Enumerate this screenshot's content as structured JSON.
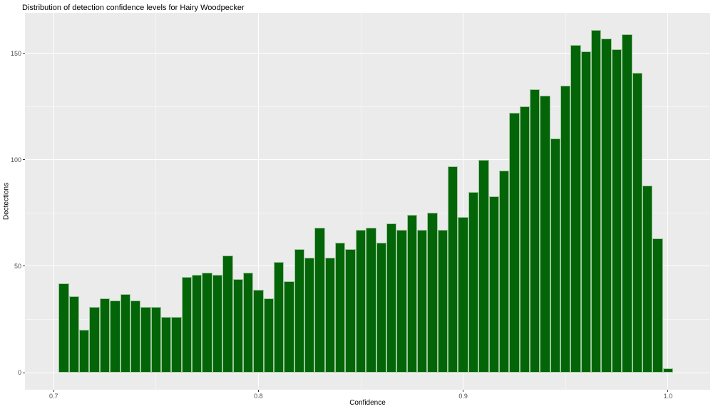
{
  "chart_data": {
    "type": "bar",
    "subtype": "histogram",
    "title": "Distribution of detection confidence levels for Hairy Woodpecker",
    "xlabel": "Confidence",
    "ylabel": "Dectections",
    "grid": true,
    "legend_position": "none",
    "bin_width": 0.005,
    "bin_centers": [
      0.705,
      0.71,
      0.715,
      0.72,
      0.725,
      0.73,
      0.735,
      0.74,
      0.745,
      0.75,
      0.755,
      0.76,
      0.765,
      0.77,
      0.775,
      0.78,
      0.785,
      0.79,
      0.795,
      0.8,
      0.805,
      0.81,
      0.815,
      0.82,
      0.825,
      0.83,
      0.835,
      0.84,
      0.845,
      0.85,
      0.855,
      0.86,
      0.865,
      0.87,
      0.875,
      0.88,
      0.885,
      0.89,
      0.895,
      0.9,
      0.905,
      0.91,
      0.915,
      0.92,
      0.925,
      0.93,
      0.935,
      0.94,
      0.945,
      0.95,
      0.955,
      0.96,
      0.965,
      0.97,
      0.975,
      0.98,
      0.985,
      0.99,
      0.995,
      1.0
    ],
    "values": [
      42,
      36,
      20,
      31,
      35,
      34,
      37,
      34,
      31,
      31,
      26,
      26,
      45,
      46,
      47,
      46,
      55,
      44,
      47,
      39,
      35,
      52,
      43,
      58,
      54,
      68,
      54,
      61,
      58,
      67,
      68,
      61,
      70,
      67,
      74,
      67,
      75,
      67,
      97,
      73,
      85,
      100,
      83,
      95,
      122,
      125,
      133,
      130,
      110,
      135,
      154,
      151,
      161,
      157,
      152,
      159,
      141,
      88,
      63,
      2
    ],
    "x_ticks": [
      {
        "v": 0.7,
        "label": "0.7"
      },
      {
        "v": 0.8,
        "label": "0.8"
      },
      {
        "v": 0.9,
        "label": "0.9"
      },
      {
        "v": 1.0,
        "label": "1.0"
      }
    ],
    "y_ticks": [
      {
        "v": 0,
        "label": "0"
      },
      {
        "v": 50,
        "label": "50"
      },
      {
        "v": 100,
        "label": "100"
      },
      {
        "v": 150,
        "label": "150"
      }
    ],
    "x_minor": [
      0.75,
      0.85,
      0.95
    ],
    "y_minor": [
      25,
      75,
      125
    ],
    "xlim": [
      0.686,
      1.0206
    ],
    "ylim": [
      -8.05,
      169.05
    ],
    "colors": {
      "bar_fill": "#046408",
      "bar_border": "#9cc79c",
      "panel_bg": "#ebebeb",
      "grid_major": "#ffffff",
      "grid_minor": "#f5f5f5",
      "tick_text": "#4d4d4d",
      "text": "#000000"
    }
  }
}
